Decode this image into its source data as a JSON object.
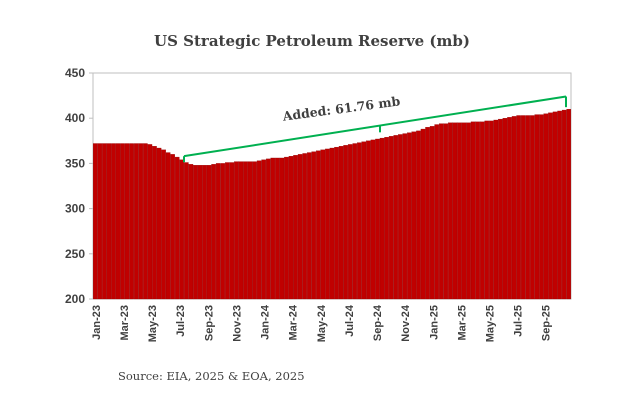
{
  "chart_data": {
    "type": "bar",
    "title": "US Strategic Petroleum Reserve (mb)",
    "source": "Source: EIA, 2025 & EOA, 2025",
    "annotation": "Added: 61.76 mb",
    "ylim": [
      200,
      450
    ],
    "yticks": [
      "200",
      "250",
      "300",
      "350",
      "400",
      "450"
    ],
    "grid": false,
    "x_tick_labels": [
      "Jan-23",
      "Mar-23",
      "May-23",
      "Jul-23",
      "Sep-23",
      "Nov-23",
      "Jan-24",
      "Mar-24",
      "May-24",
      "Jul-24",
      "Sep-24",
      "Nov-24",
      "Jan-25",
      "Mar-25",
      "May-25",
      "Jul-25",
      "Sep-25"
    ],
    "values": [
      372,
      372,
      372,
      372,
      372,
      372,
      372,
      372,
      372,
      372,
      372,
      372,
      371,
      369,
      367,
      365,
      362,
      360,
      357,
      354,
      351,
      349,
      348,
      348,
      348,
      348,
      349,
      350,
      350,
      351,
      351,
      352,
      352,
      352,
      352,
      352,
      353,
      354,
      355,
      356,
      356,
      356,
      357,
      358,
      359,
      360,
      361,
      362,
      363,
      364,
      365,
      366,
      367,
      368,
      369,
      370,
      371,
      372,
      373,
      374,
      375,
      376,
      377,
      378,
      379,
      380,
      381,
      382,
      383,
      384,
      385,
      386,
      388,
      390,
      391,
      393,
      394,
      394,
      395,
      395,
      395,
      395,
      395,
      396,
      396,
      396,
      397,
      397,
      398,
      399,
      400,
      401,
      402,
      403,
      403,
      403,
      403,
      404,
      404,
      405,
      406,
      407,
      408,
      409,
      410
    ],
    "colors": {
      "bar": "#c00000",
      "bar_stroke": "#8e0000",
      "bracket": "#00b050",
      "axis": "#bfbfbf",
      "text": "#404040"
    }
  }
}
